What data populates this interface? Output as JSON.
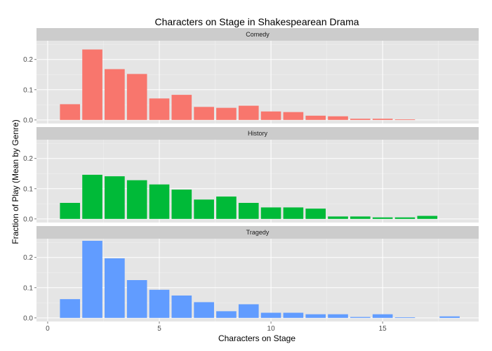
{
  "chart_data": {
    "type": "bar",
    "title": "Characters on Stage in Shakespearean Drama",
    "xlabel": "Characters on Stage",
    "ylabel": "Fraction of Play (Mean by Genre)",
    "xlim": [
      -0.5,
      19.3
    ],
    "ylim": [
      -0.012,
      0.262
    ],
    "x_ticks": [
      0,
      5,
      10,
      15
    ],
    "y_ticks": [
      0.0,
      0.1,
      0.2
    ],
    "y_tick_labels": [
      "0.0",
      "0.1",
      "0.2"
    ],
    "facet_layout": "stacked vertically, shared x axis",
    "series": [
      {
        "name": "Comedy",
        "color": "#F8766D",
        "x": [
          1,
          2,
          3,
          4,
          5,
          6,
          7,
          8,
          9,
          10,
          11,
          12,
          13,
          14,
          15,
          16
        ],
        "values": [
          0.052,
          0.233,
          0.168,
          0.152,
          0.071,
          0.083,
          0.043,
          0.04,
          0.047,
          0.028,
          0.026,
          0.014,
          0.012,
          0.004,
          0.004,
          0.002
        ]
      },
      {
        "name": "History",
        "color": "#00BA38",
        "x": [
          1,
          2,
          3,
          4,
          5,
          6,
          7,
          8,
          9,
          10,
          11,
          12,
          13,
          14,
          15,
          16,
          17
        ],
        "values": [
          0.053,
          0.146,
          0.141,
          0.128,
          0.114,
          0.097,
          0.064,
          0.074,
          0.053,
          0.038,
          0.038,
          0.034,
          0.008,
          0.008,
          0.005,
          0.005,
          0.01
        ]
      },
      {
        "name": "Tragedy",
        "color": "#619CFF",
        "x": [
          1,
          2,
          3,
          4,
          5,
          6,
          7,
          8,
          9,
          10,
          11,
          12,
          13,
          14,
          15,
          16,
          18
        ],
        "values": [
          0.062,
          0.255,
          0.197,
          0.125,
          0.093,
          0.074,
          0.052,
          0.022,
          0.045,
          0.017,
          0.017,
          0.012,
          0.012,
          0.003,
          0.012,
          0.002,
          0.005
        ]
      }
    ]
  }
}
